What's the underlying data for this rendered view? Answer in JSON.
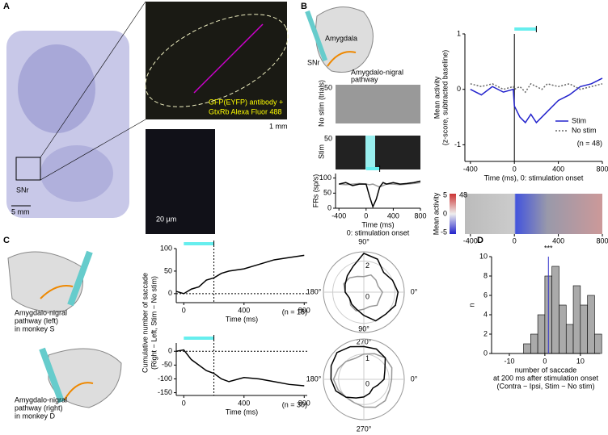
{
  "figure": {
    "panels": [
      "A",
      "B",
      "C",
      "D"
    ],
    "a": {
      "snr": "SNr",
      "scale1": "5 mm",
      "antibody": [
        "GFP(EYFP) antibody +",
        "GtxRb Alexa Fluor 488"
      ],
      "scale2": "1 mm",
      "scale3": "20 µm"
    },
    "b": {
      "amygdala": "Amygdala",
      "snr": "SNr",
      "pathway": [
        "Amygdalo-nigral",
        "pathway"
      ],
      "nostim": "No stim (trials)",
      "stim": "Stim",
      "trials1": "50",
      "trials2": "50",
      "colorbar_label": "Mean activity",
      "colorbar_ticks": [
        "5",
        "0",
        "-5"
      ],
      "rows": "48",
      "heat_xticks": [
        -400,
        0,
        400,
        800
      ]
    },
    "c": {
      "monkey_s": [
        "Amygdalo-nigral",
        "pathway (left)",
        "in monkey S"
      ],
      "monkey_d": [
        "Amygdalo-nigral",
        "pathway (right)",
        "in monkey D"
      ],
      "ylabel": [
        "Cumulative number of saccade",
        "(Right − Left, Stim − No stim)"
      ]
    }
  },
  "chart_data": [
    {
      "type": "line",
      "ylabel": [
        "FRs (sp/s)"
      ],
      "xlabel": [
        "Time (ms)",
        "0: stimulation onset"
      ],
      "xlim": [
        -450,
        800
      ],
      "ylim": [
        0,
        115
      ],
      "xticks": [
        -400,
        0,
        400,
        800
      ],
      "yticks": [
        0,
        50,
        100
      ],
      "stim_period": [
        0,
        200
      ],
      "x": [
        -400,
        -300,
        -200,
        -100,
        0,
        50,
        100,
        150,
        200,
        250,
        300,
        400,
        500,
        600,
        700,
        800
      ],
      "series": [
        {
          "color": "#999999",
          "values": [
            80,
            78,
            80,
            82,
            80,
            78,
            80,
            75,
            70,
            75,
            80,
            80,
            78,
            80,
            82,
            85
          ]
        },
        {
          "color": "#000000",
          "values": [
            80,
            85,
            75,
            80,
            80,
            40,
            5,
            30,
            70,
            85,
            80,
            85,
            80,
            82,
            85,
            90
          ]
        }
      ]
    },
    {
      "type": "line",
      "ylabel": [
        "Mean activity",
        "(z-score, subtracted baseline)"
      ],
      "xlabel": [
        "Time (ms), 0: stimulation onset"
      ],
      "note": "(n = 48)",
      "xlim": [
        -450,
        800
      ],
      "ylim": [
        -1.3,
        1.0
      ],
      "xticks": [
        -400,
        0,
        400,
        800
      ],
      "yticks": [
        -1,
        0,
        1
      ],
      "stim_period": [
        0,
        200
      ],
      "vline": 0,
      "x": [
        -400,
        -300,
        -200,
        -100,
        -10,
        0,
        50,
        100,
        150,
        200,
        250,
        300,
        400,
        500,
        600,
        700,
        800
      ],
      "series": [
        {
          "name": "Stim",
          "color": "#2222cc",
          "values": [
            0.0,
            -0.1,
            0.05,
            -0.05,
            0.0,
            -0.3,
            -0.5,
            -0.6,
            -0.45,
            -0.6,
            -0.5,
            -0.4,
            -0.2,
            -0.1,
            0.05,
            0.1,
            0.2
          ]
        },
        {
          "name": "No stim",
          "color": "#666666",
          "style": "dotted",
          "values": [
            0.1,
            0.05,
            0.1,
            0.0,
            0.05,
            0.0,
            0.05,
            -0.05,
            0.1,
            0.05,
            0.0,
            0.1,
            0.05,
            0.1,
            0.0,
            0.05,
            0.1
          ]
        }
      ]
    },
    {
      "type": "line",
      "xlabel": [
        "Time (ms)"
      ],
      "note": "(n = 18)",
      "xlim": [
        -50,
        820
      ],
      "ylim": [
        -20,
        100
      ],
      "xticks": [
        0,
        400,
        800
      ],
      "yticks": [
        0,
        50,
        100
      ],
      "stim_period": [
        0,
        200
      ],
      "hline": 0,
      "vline": 200,
      "x": [
        -50,
        0,
        50,
        100,
        150,
        200,
        250,
        300,
        400,
        500,
        600,
        700,
        800
      ],
      "series": [
        {
          "color": "#000000",
          "values": [
            5,
            0,
            10,
            15,
            30,
            35,
            45,
            50,
            55,
            65,
            75,
            80,
            85
          ]
        }
      ]
    },
    {
      "type": "line",
      "xlabel": [
        "Time (ms)"
      ],
      "note": "(n = 30)",
      "xlim": [
        -50,
        820
      ],
      "ylim": [
        -160,
        30
      ],
      "xticks": [
        0,
        400,
        800
      ],
      "yticks": [
        0,
        -50,
        -100,
        -150
      ],
      "stim_period": [
        0,
        200
      ],
      "hline": 0,
      "vline": 200,
      "x": [
        -50,
        0,
        50,
        100,
        150,
        200,
        250,
        300,
        400,
        500,
        600,
        700,
        800
      ],
      "series": [
        {
          "color": "#000000",
          "values": [
            0,
            5,
            -30,
            -50,
            -70,
            -80,
            -100,
            -110,
            -95,
            -100,
            -110,
            -120,
            -125
          ]
        }
      ]
    },
    {
      "type": "polar",
      "rlim": [
        0,
        2.6
      ],
      "rticks": [
        0,
        2
      ],
      "angle_ticks": [
        {
          "value": 90,
          "label": "90°"
        },
        {
          "value": 180,
          "label": "180°"
        },
        {
          "value": 0,
          "label": "0°"
        },
        {
          "value": 270,
          "label": "270°"
        }
      ],
      "theta": [
        0,
        22.5,
        45,
        67.5,
        90,
        112.5,
        135,
        157.5,
        180,
        202.5,
        225,
        247.5,
        270,
        292.5,
        315,
        337.5
      ],
      "series": [
        {
          "color": "#999999",
          "values": [
            1.2,
            1.0,
            1.1,
            1.2,
            1.0,
            1.1,
            1.3,
            1.4,
            1.2,
            1.0,
            1.2,
            1.3,
            1.1,
            1.0,
            1.2,
            1.1
          ]
        },
        {
          "color": "#000000",
          "values": [
            2.2,
            2.0,
            1.8,
            2.3,
            2.5,
            1.8,
            1.5,
            1.3,
            1.2,
            1.0,
            1.1,
            1.2,
            1.5,
            2.0,
            2.0,
            2.2
          ]
        }
      ]
    },
    {
      "type": "polar",
      "rlim": [
        0,
        1.6
      ],
      "rticks": [
        0,
        1
      ],
      "angle_ticks": [
        {
          "value": 90,
          "label": "90°"
        },
        {
          "value": 180,
          "label": "180°"
        },
        {
          "value": 0,
          "label": "0°"
        },
        {
          "value": 270,
          "label": "270°"
        }
      ],
      "theta": [
        0,
        22.5,
        45,
        67.5,
        90,
        112.5,
        135,
        157.5,
        180,
        202.5,
        225,
        247.5,
        270,
        292.5,
        315,
        337.5
      ],
      "series": [
        {
          "color": "#999999",
          "values": [
            1.1,
            1.2,
            1.2,
            1.1,
            1.0,
            0.9,
            1.0,
            1.1,
            1.2,
            1.1,
            1.0,
            1.0,
            1.1,
            1.2,
            1.2,
            1.1
          ]
        },
        {
          "color": "#000000",
          "values": [
            0.8,
            0.9,
            1.2,
            1.3,
            1.3,
            1.4,
            1.5,
            1.4,
            1.3,
            1.2,
            1.0,
            0.8,
            0.7,
            0.6,
            0.5,
            0.6
          ]
        }
      ]
    },
    {
      "type": "histogram",
      "ylabel": [
        "n"
      ],
      "xlabel": [
        "number of saccade",
        "at 200 ms after stimulation onset",
        "(Contra − Ipsi, Stim − No stim)"
      ],
      "annotation": "***",
      "xlim": [
        -15,
        15.5
      ],
      "ylim": [
        0,
        10
      ],
      "xticks": [
        -10,
        0,
        10
      ],
      "yticks": [
        0,
        2,
        4,
        6,
        8,
        10
      ],
      "color": "#aaaaaa",
      "mean": 1,
      "mean_color": "#3333cc",
      "bins": [
        -6,
        -4,
        -2,
        0,
        2,
        4,
        6,
        8,
        10,
        12,
        14,
        16
      ],
      "counts": [
        1,
        2,
        4,
        8,
        9,
        5,
        3,
        7,
        5,
        6,
        2
      ]
    }
  ]
}
